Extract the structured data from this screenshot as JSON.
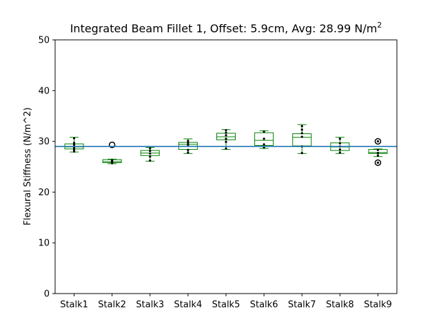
{
  "chart_data": {
    "type": "box",
    "title": "Integrated Beam Fillet 1, Offset: 5.9cm, Avg: 28.99 N/m",
    "title_superscript": "2",
    "xlabel": "",
    "ylabel": "Flexural Stiffness (N/m^2)",
    "ylim": [
      0,
      50
    ],
    "yticks": [
      0,
      10,
      20,
      30,
      40,
      50
    ],
    "grid": false,
    "reference_line": {
      "y": 28.99,
      "color": "#1f77b4"
    },
    "colors": {
      "box": "#008000",
      "median": "#008000",
      "points": "#000000",
      "outlier": "#000000"
    },
    "categories": [
      "Stalk1",
      "Stalk2",
      "Stalk3",
      "Stalk4",
      "Stalk5",
      "Stalk6",
      "Stalk7",
      "Stalk8",
      "Stalk9"
    ],
    "boxes": [
      {
        "name": "Stalk1",
        "whisker_low": 27.9,
        "q1": 28.5,
        "median": 28.9,
        "q3": 29.5,
        "whisker_high": 30.8,
        "outliers": [],
        "points": [
          28.0,
          28.3,
          28.6,
          28.9,
          29.3,
          29.7,
          30.6
        ]
      },
      {
        "name": "Stalk2",
        "whisker_low": 25.6,
        "q1": 25.8,
        "median": 26.0,
        "q3": 26.4,
        "whisker_high": 26.5,
        "outliers": [
          29.3
        ],
        "points": [
          25.7,
          25.9,
          26.1,
          26.3
        ]
      },
      {
        "name": "Stalk3",
        "whisker_low": 26.1,
        "q1": 27.2,
        "median": 27.7,
        "q3": 28.2,
        "whisker_high": 28.8,
        "outliers": [],
        "points": [
          26.2,
          27.0,
          27.6,
          28.1,
          28.6
        ]
      },
      {
        "name": "Stalk4",
        "whisker_low": 27.6,
        "q1": 28.4,
        "median": 29.4,
        "q3": 29.8,
        "whisker_high": 30.5,
        "outliers": [],
        "points": [
          27.8,
          28.3,
          29.3,
          29.7,
          30.1
        ]
      },
      {
        "name": "Stalk5",
        "whisker_low": 28.4,
        "q1": 30.3,
        "median": 30.9,
        "q3": 31.6,
        "whisker_high": 32.3,
        "outliers": [],
        "points": [
          28.6,
          29.9,
          30.5,
          31.2,
          31.7,
          32.2
        ]
      },
      {
        "name": "Stalk6",
        "whisker_low": 28.6,
        "q1": 29.2,
        "median": 30.2,
        "q3": 31.7,
        "whisker_high": 32.1,
        "outliers": [],
        "points": [
          28.8,
          29.4,
          30.5,
          31.9
        ]
      },
      {
        "name": "Stalk7",
        "whisker_low": 27.6,
        "q1": 29.1,
        "median": 30.8,
        "q3": 31.5,
        "whisker_high": 33.3,
        "outliers": [],
        "points": [
          27.7,
          29.0,
          30.9,
          31.6,
          32.3,
          33.0
        ]
      },
      {
        "name": "Stalk8",
        "whisker_low": 27.6,
        "q1": 28.2,
        "median": 28.9,
        "q3": 29.7,
        "whisker_high": 30.8,
        "outliers": [],
        "points": [
          27.8,
          28.4,
          29.0,
          29.6,
          30.5
        ]
      },
      {
        "name": "Stalk9",
        "whisker_low": 27.0,
        "q1": 27.6,
        "median": 27.8,
        "q3": 28.4,
        "whisker_high": 28.5,
        "outliers": [
          30.0,
          25.8
        ],
        "points": [
          27.2,
          27.7,
          28.3,
          30.0,
          25.8
        ]
      }
    ]
  }
}
